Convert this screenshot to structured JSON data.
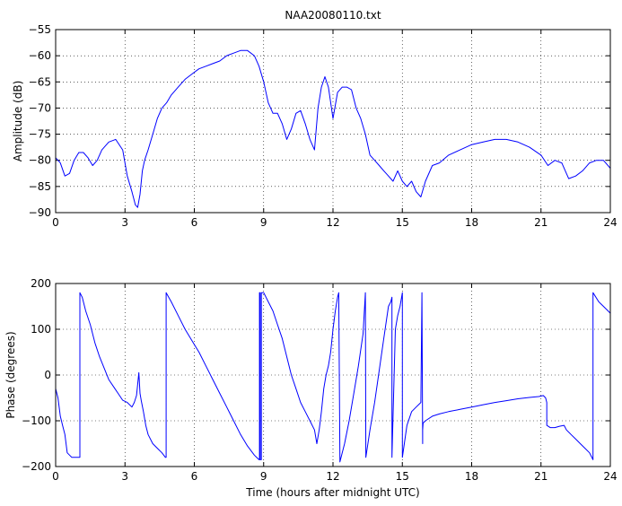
{
  "chart_data": [
    {
      "type": "line",
      "title": "NAA20080110.txt",
      "xlabel": "",
      "ylabel": "Amplitude (dB)",
      "xlim": [
        0,
        24
      ],
      "ylim": [
        -90,
        -55
      ],
      "xticks": [
        0,
        3,
        6,
        9,
        12,
        15,
        18,
        21,
        24
      ],
      "yticks": [
        -55,
        -60,
        -65,
        -70,
        -75,
        -80,
        -85,
        -90
      ],
      "grid": true,
      "color": "#0000ff",
      "series": [
        {
          "x": [
            0,
            0.2,
            0.4,
            0.6,
            0.8,
            1.0,
            1.2,
            1.4,
            1.6,
            1.8,
            2.0,
            2.3,
            2.6,
            2.9,
            3.1,
            3.3,
            3.45,
            3.55,
            3.65,
            3.75,
            3.85,
            4.0,
            4.2,
            4.4,
            4.6,
            4.8,
            5.0,
            5.3,
            5.6,
            5.9,
            6.2,
            6.5,
            6.8,
            7.1,
            7.4,
            7.7,
            8.0,
            8.3,
            8.6,
            8.8,
            9.0,
            9.2,
            9.4,
            9.6,
            9.8,
            10.0,
            10.2,
            10.4,
            10.6,
            10.8,
            11.0,
            11.2,
            11.35,
            11.5,
            11.65,
            11.8,
            12.0,
            12.2,
            12.4,
            12.6,
            12.8,
            13.0,
            13.2,
            13.4,
            13.6,
            13.8,
            14.0,
            14.2,
            14.4,
            14.6,
            14.8,
            15.0,
            15.2,
            15.4,
            15.6,
            15.8,
            16.0,
            16.3,
            16.6,
            17.0,
            17.5,
            18.0,
            18.5,
            19.0,
            19.5,
            20.0,
            20.5,
            21.0,
            21.3,
            21.6,
            21.9,
            22.2,
            22.5,
            22.8,
            23.1,
            23.4,
            23.7,
            24.0
          ],
          "y": [
            -79.5,
            -80.5,
            -83,
            -82.5,
            -80,
            -78.5,
            -78.5,
            -79.5,
            -81,
            -80,
            -78,
            -76.5,
            -76,
            -78,
            -83,
            -86,
            -88.5,
            -89,
            -86.5,
            -82,
            -80,
            -78,
            -75,
            -72,
            -70,
            -69,
            -67.5,
            -66,
            -64.5,
            -63.5,
            -62.5,
            -62,
            -61.5,
            -61,
            -60,
            -59.5,
            -59,
            -59,
            -60,
            -62,
            -65,
            -69,
            -71,
            -71,
            -73,
            -76,
            -74,
            -71,
            -70.5,
            -73,
            -76,
            -78,
            -70,
            -66,
            -64,
            -66,
            -72,
            -67,
            -66,
            -66,
            -66.5,
            -70,
            -72,
            -75,
            -79,
            -80,
            -81,
            -82,
            -83,
            -84,
            -82,
            -84,
            -85,
            -84,
            -86,
            -87,
            -84,
            -81,
            -80.5,
            -79,
            -78,
            -77,
            -76.5,
            -76,
            -76,
            -76.5,
            -77.5,
            -79,
            -81,
            -80,
            -80.5,
            -83.5,
            -83,
            -82,
            -80.5,
            -80,
            -80,
            -81.5
          ]
        }
      ]
    },
    {
      "type": "line",
      "title": "",
      "xlabel": "Time (hours after midnight UTC)",
      "ylabel": "Phase (degrees)",
      "xlim": [
        0,
        24
      ],
      "ylim": [
        -200,
        200
      ],
      "xticks": [
        0,
        3,
        6,
        9,
        12,
        15,
        18,
        21,
        24
      ],
      "yticks": [
        200,
        100,
        0,
        -100,
        -200
      ],
      "grid": true,
      "color": "#0000ff",
      "series": [
        {
          "x": [
            0,
            0.1,
            0.2,
            0.3,
            0.4,
            0.5,
            0.6,
            0.7,
            0.8,
            0.9,
            1.0,
            1.05,
            1.05,
            1.15,
            1.3,
            1.5,
            1.7,
            1.9,
            2.1,
            2.3,
            2.5,
            2.7,
            2.9,
            3.1,
            3.3,
            3.4,
            3.5,
            3.55,
            3.6,
            3.65,
            3.7,
            3.8,
            3.9,
            4.0,
            4.2,
            4.4,
            4.6,
            4.75,
            4.78,
            4.78,
            5.0,
            5.3,
            5.6,
            5.9,
            6.2,
            6.5,
            6.8,
            7.1,
            7.4,
            7.7,
            8.0,
            8.3,
            8.6,
            8.8,
            8.82,
            8.82,
            8.85,
            8.85,
            8.9,
            8.9,
            8.95,
            8.95,
            9.0,
            9.2,
            9.4,
            9.6,
            9.8,
            10.0,
            10.2,
            10.4,
            10.6,
            10.8,
            11.0,
            11.2,
            11.3,
            11.4,
            11.5,
            11.6,
            11.7,
            11.8,
            11.9,
            12.0,
            12.1,
            12.2,
            12.25,
            12.3,
            12.3,
            12.5,
            12.7,
            12.9,
            13.1,
            13.3,
            13.4,
            13.42,
            13.42,
            13.6,
            13.8,
            14.0,
            14.2,
            14.4,
            14.5,
            14.55,
            14.55,
            14.6,
            14.7,
            14.8,
            14.9,
            15.0,
            15.0,
            15.2,
            15.4,
            15.6,
            15.8,
            15.85,
            15.88,
            15.88,
            15.9,
            16.0,
            16.3,
            16.6,
            17.0,
            17.5,
            18.0,
            18.5,
            19.0,
            19.5,
            20.0,
            20.5,
            20.9,
            21.1,
            21.2,
            21.25,
            21.25,
            21.4,
            21.6,
            21.8,
            22.0,
            22.1,
            22.3,
            22.5,
            22.7,
            22.9,
            23.1,
            23.2,
            23.25,
            23.25,
            23.5,
            23.8,
            24.0
          ],
          "y": [
            -30,
            -50,
            -90,
            -110,
            -130,
            -170,
            -175,
            -180,
            -180,
            -180,
            -180,
            -180,
            180,
            170,
            140,
            110,
            70,
            40,
            15,
            -10,
            -25,
            -40,
            -55,
            -60,
            -70,
            -60,
            -45,
            -20,
            5,
            -40,
            -55,
            -80,
            -110,
            -130,
            -150,
            -160,
            -170,
            -180,
            -180,
            180,
            160,
            130,
            100,
            75,
            50,
            20,
            -10,
            -40,
            -70,
            -100,
            -130,
            -155,
            -175,
            -185,
            -185,
            180,
            180,
            -185,
            -185,
            180,
            180,
            180,
            180,
            160,
            140,
            110,
            80,
            40,
            0,
            -30,
            -60,
            -80,
            -100,
            -120,
            -150,
            -120,
            -80,
            -30,
            0,
            20,
            50,
            100,
            140,
            170,
            180,
            -180,
            -190,
            -150,
            -100,
            -40,
            20,
            90,
            180,
            -180,
            -180,
            -120,
            -60,
            10,
            80,
            150,
            160,
            170,
            -180,
            -90,
            100,
            130,
            150,
            180,
            -180,
            -110,
            -80,
            -70,
            -60,
            180,
            -150,
            -120,
            -105,
            -100,
            -90,
            -85,
            -80,
            -75,
            -70,
            -65,
            -60,
            -56,
            -52,
            -49,
            -47,
            -45,
            -50,
            -60,
            -110,
            -115,
            -115,
            -112,
            -110,
            -120,
            -130,
            -140,
            -150,
            -160,
            -170,
            -180,
            -185,
            180,
            160,
            145,
            135
          ]
        }
      ]
    }
  ]
}
